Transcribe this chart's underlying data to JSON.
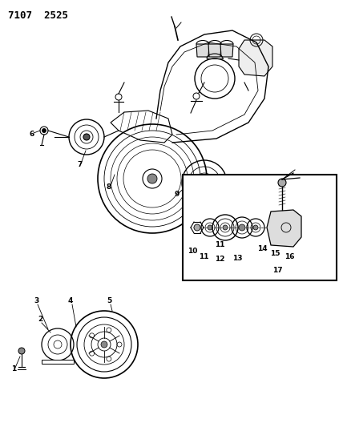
{
  "title": "7107  2525",
  "bg_color": "#ffffff",
  "line_color": "#000000",
  "fig_width": 4.28,
  "fig_height": 5.33,
  "dpi": 100
}
